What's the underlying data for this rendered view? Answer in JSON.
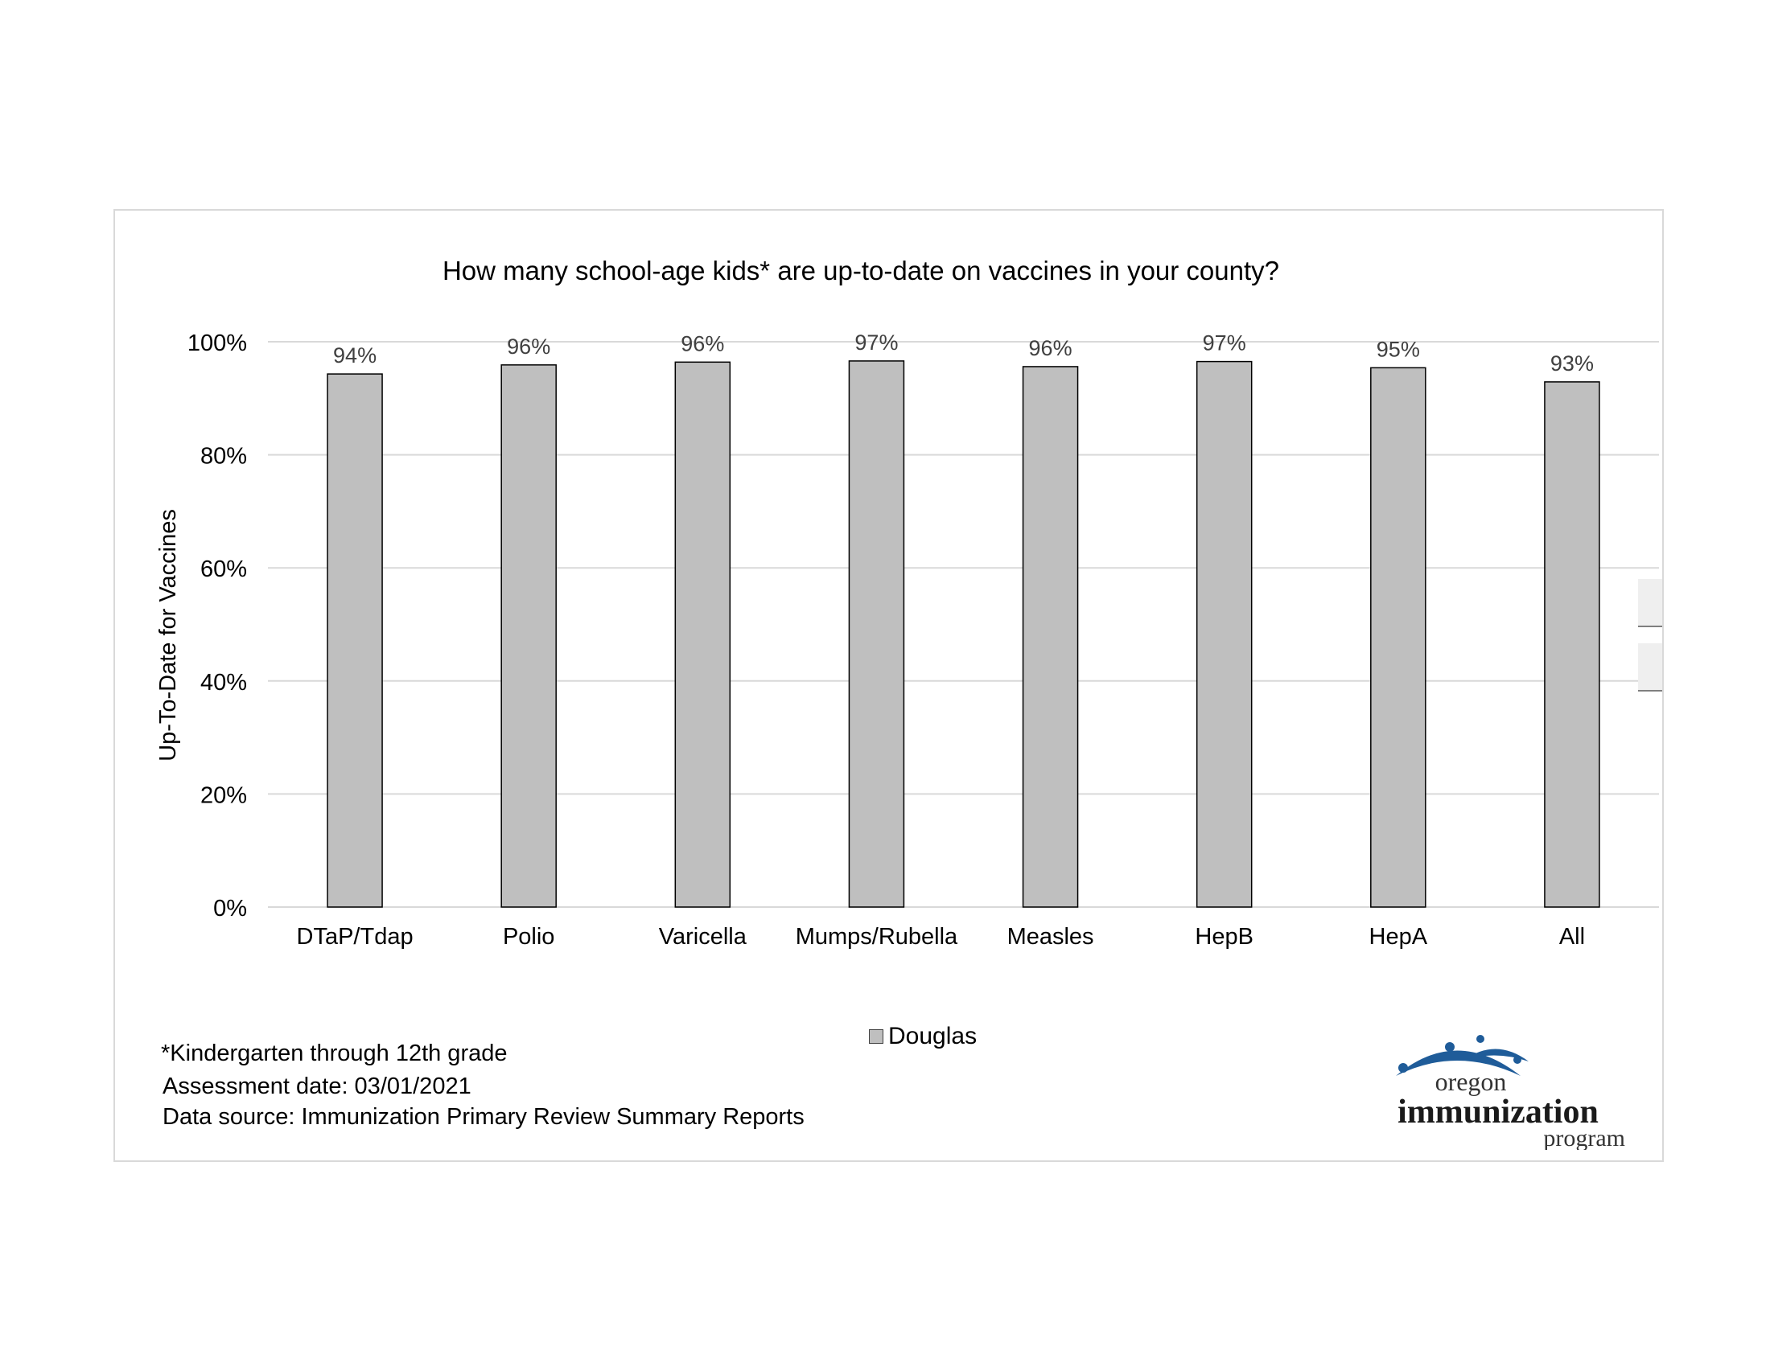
{
  "chart_data": {
    "type": "bar",
    "title": "How many school-age kids* are up-to-date on vaccines in your county?",
    "ylabel": "Up-To-Date for Vaccines",
    "xlabel": "",
    "categories": [
      "DTaP/Tdap",
      "Polio",
      "Varicella",
      "Mumps/Rubella",
      "Measles",
      "HepB",
      "HepA",
      "All"
    ],
    "series": [
      {
        "name": "Douglas",
        "values": [
          94.3,
          95.9,
          96.4,
          96.6,
          95.6,
          96.5,
          95.4,
          92.9
        ],
        "labels": [
          "94%",
          "96%",
          "96%",
          "97%",
          "96%",
          "97%",
          "95%",
          "93%"
        ]
      }
    ],
    "ylim": [
      0,
      100
    ],
    "yticks": [
      0,
      20,
      40,
      60,
      80,
      100
    ],
    "ytick_labels": [
      "0%",
      "20%",
      "40%",
      "60%",
      "80%",
      "100%"
    ],
    "grid": true,
    "legend_position": "bottom",
    "colors": {
      "bar_fill": "#bfbfbf",
      "bar_stroke": "#000000",
      "grid": "#d9d9d9"
    }
  },
  "footnotes": {
    "grades": "*Kindergarten through 12th grade",
    "assessment_date": " Assessment date: 03/01/2021",
    "data_source": " Data source: Immunization Primary Review Summary Reports"
  },
  "logo": {
    "line1": "oregon",
    "line2": "immunization",
    "line3": "program",
    "color": "#1f5c99"
  }
}
